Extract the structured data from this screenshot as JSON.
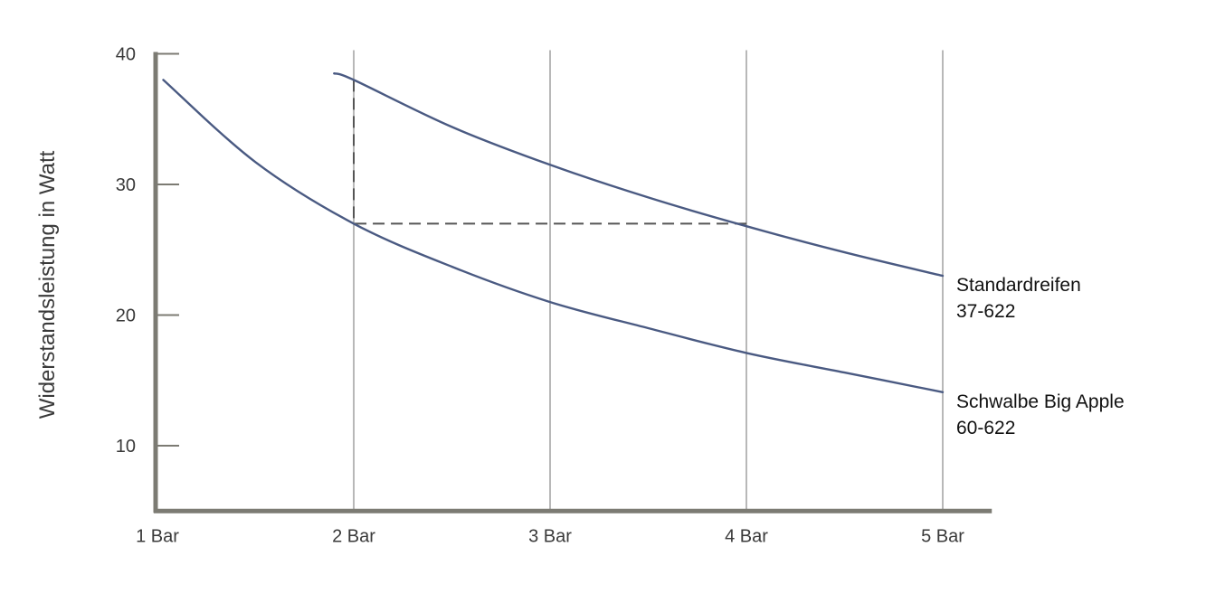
{
  "chart_data": {
    "type": "line",
    "title": "",
    "xlabel": "",
    "ylabel": "Widerstandsleistung in Watt",
    "x_tick_labels": [
      "1 Bar",
      "2 Bar",
      "3 Bar",
      "4 Bar",
      "5 Bar"
    ],
    "y_tick_labels": [
      "10",
      "20",
      "30",
      "40"
    ],
    "xlim": [
      1,
      5.25
    ],
    "ylim": [
      5,
      40
    ],
    "grid": "vertical",
    "series": [
      {
        "legend": [
          "Standardreifen",
          "37-622"
        ],
        "x": [
          1.9,
          2,
          2.5,
          3,
          3.5,
          4,
          4.5,
          5
        ],
        "values": [
          38.5,
          38,
          34.4,
          31.5,
          29,
          26.8,
          24.8,
          23
        ],
        "color": "#4a5a82"
      },
      {
        "legend": [
          "Schwalbe Big Apple",
          "60-622"
        ],
        "x": [
          1.03,
          1.5,
          2,
          2.5,
          3,
          3.5,
          4,
          4.5,
          5
        ],
        "values": [
          38,
          31.7,
          27,
          23.7,
          21,
          19,
          17.1,
          15.6,
          14.1
        ],
        "color": "#4a5a82"
      }
    ],
    "annotation": {
      "type": "dashed-guide",
      "from": {
        "x": 2,
        "y": 38
      },
      "corner": {
        "x": 2,
        "y": 27
      },
      "to": {
        "x": 4,
        "y": 27
      },
      "color": "#555555"
    },
    "axis_color": "#7c7b73",
    "grid_color": "#9a9a9a"
  }
}
